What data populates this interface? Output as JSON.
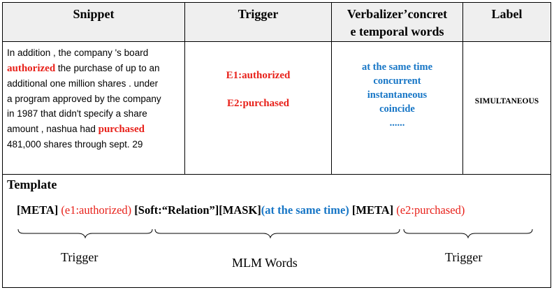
{
  "headers": {
    "snippet": "Snippet",
    "trigger": "Trigger",
    "verbalizer_line1": "Verbalizer’concret",
    "verbalizer_line2": "e temporal words",
    "label": "Label"
  },
  "snippet": {
    "line1": "In addition , the company 's board",
    "trigger1": "authorized",
    "line2_rest": " the purchase of up to an",
    "line3": " additional one million shares . under",
    "line4": "a program approved by the company",
    "line5": "in 1987 that didn't specify a share",
    "line6_pre": "amount , nashua had ",
    "trigger2": "purchased",
    "line7": "481,000 shares through sept. 29"
  },
  "triggers": [
    "E1:authorized",
    "E2:purchased"
  ],
  "verbalizer_words": [
    "at the same time",
    "concurrent",
    "instantaneous",
    "coincide",
    "......"
  ],
  "label": "SIMULTANEOUS",
  "template": {
    "title": "Template",
    "meta1": "[META]",
    "e1": "(e1:authorized)",
    "soft": "[Soft:“Relation”]",
    "mask": "[MASK]",
    "mask_word": "(at the same time)",
    "meta2": "[META]",
    "e2": "(e2:purchased)",
    "label_left": "Trigger",
    "label_mid": "MLM Words",
    "label_right": "Trigger"
  },
  "colors": {
    "trigger_red": "#e8211a",
    "verbalizer_blue": "#1776c6",
    "header_bg": "#efefef"
  }
}
